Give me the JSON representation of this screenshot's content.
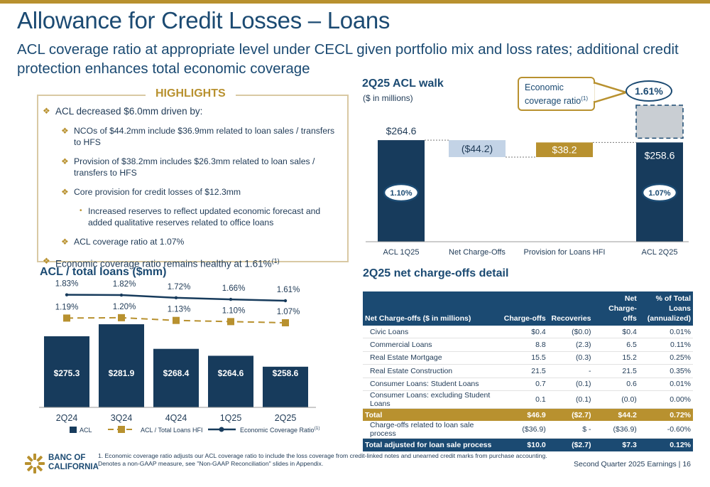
{
  "header": {
    "title": "Allowance for Credit Losses – Loans",
    "subtitle": "ACL coverage ratio at appropriate level under CECL given portfolio mix and loss rates; additional credit protection enhances total economic coverage"
  },
  "highlights": {
    "title": "HIGHLIGHTS",
    "items": [
      {
        "level": 1,
        "text": "ACL decreased $6.0mm driven by:"
      },
      {
        "level": 2,
        "text": "NCOs of $44.2mm include $36.9mm related to loan sales / transfers to HFS"
      },
      {
        "level": 2,
        "text": "Provision of $38.2mm includes $26.3mm related to loan sales / transfers to HFS"
      },
      {
        "level": 2,
        "text": "Core provision for credit losses of $12.3mm"
      },
      {
        "level": 3,
        "text": "Increased reserves to reflect updated economic forecast and added qualitative reserves related to office loans"
      },
      {
        "level": 2,
        "text": "ACL coverage ratio at 1.07%"
      },
      {
        "level": 1,
        "text": "Economic coverage ratio remains healthy at 1.61%",
        "sup": "(1)"
      }
    ]
  },
  "walk": {
    "title": "2Q25 ACL walk",
    "units": "($ in millions)",
    "callout_text": "Economic coverage ratio",
    "callout_sup": "(1)",
    "economic_ratio_label": "1.61%"
  },
  "acl_chart": {
    "title": "ACL / total loans ($mm)"
  },
  "nco": {
    "title": "2Q25 net charge-offs detail",
    "headers": [
      "Net Charge-offs ($ in millions)",
      "Charge-offs",
      "Recoveries",
      "Net Charge-offs",
      "% of Total Loans (annualized)"
    ],
    "rows": [
      [
        "Civic Loans",
        "$0.4",
        "($0.0)",
        "$0.4",
        "0.01%"
      ],
      [
        "Commercial Loans",
        "8.8",
        "(2.3)",
        "6.5",
        "0.11%"
      ],
      [
        "Real Estate Mortgage",
        "15.5",
        "(0.3)",
        "15.2",
        "0.25%"
      ],
      [
        "Real Estate Construction",
        "21.5",
        "-",
        "21.5",
        "0.35%"
      ],
      [
        "Consumer Loans: Student Loans",
        "0.7",
        "(0.1)",
        "0.6",
        "0.01%"
      ],
      [
        "Consumer Loans: excluding Student Loans",
        "0.1",
        "(0.1)",
        "(0.0)",
        "0.00%"
      ]
    ],
    "total": [
      "Total",
      "$46.9",
      "($2.7)",
      "$44.2",
      "0.72%"
    ],
    "sale_row": [
      "Charge-offs related to loan sale process",
      "($36.9)",
      "$ -",
      "($36.9)",
      "-0.60%"
    ],
    "adjusted": [
      "Total adjusted for loan sale process",
      "$10.0",
      "($2.7)",
      "$7.3",
      "0.12%"
    ]
  },
  "footer": {
    "footnote": "1.  Economic coverage ratio adjusts our ACL coverage ratio to include the loss coverage from credit-linked notes and unearned credit marks from purchase accounting. Denotes a non-GAAP measure, see \"Non-GAAP Reconciliation\" slides in Appendix.",
    "logo_line1": "BANC OF",
    "logo_line2": "CALIFORNIA",
    "page_label": "Second Quarter 2025 Earnings |  16"
  },
  "colors": {
    "navy": "#173b5c",
    "gold": "#b8912f",
    "light_blue": "#c3d3e6",
    "gray": "#c9ced3"
  },
  "chart_data": [
    {
      "type": "bar",
      "name": "2Q25 ACL walk",
      "categories": [
        "ACL 1Q25",
        "Net Charge-Offs",
        "Provision for Loans HFI",
        "ACL 2Q25"
      ],
      "values": [
        264.6,
        -44.2,
        38.2,
        258.6
      ],
      "value_labels": [
        "$264.6",
        "($44.2)",
        "$38.2",
        "$258.6"
      ],
      "ratio_labels": [
        "1.10%",
        "",
        "",
        "1.07%"
      ],
      "economic_coverage_ratio": "1.61%",
      "waterfall": true
    },
    {
      "type": "bar",
      "name": "ACL / total loans ($mm)",
      "categories": [
        "2Q24",
        "3Q24",
        "4Q24",
        "1Q25",
        "2Q25"
      ],
      "series": [
        {
          "name": "ACL",
          "type": "bar",
          "values": [
            275.3,
            281.9,
            268.4,
            264.6,
            258.6
          ],
          "labels": [
            "$275.3",
            "$281.9",
            "$268.4",
            "$264.6",
            "$258.6"
          ]
        },
        {
          "name": "ACL / Total Loans HFI",
          "type": "line",
          "values": [
            1.19,
            1.2,
            1.13,
            1.1,
            1.07
          ],
          "labels": [
            "1.19%",
            "1.20%",
            "1.13%",
            "1.10%",
            "1.07%"
          ]
        },
        {
          "name": "Economic Coverage Ratio",
          "type": "line",
          "values": [
            1.83,
            1.82,
            1.72,
            1.66,
            1.61
          ],
          "labels": [
            "1.83%",
            "1.82%",
            "1.72%",
            "1.66%",
            "1.61%"
          ]
        }
      ],
      "legend_sup": "(1)",
      "legend": "bottom"
    }
  ]
}
